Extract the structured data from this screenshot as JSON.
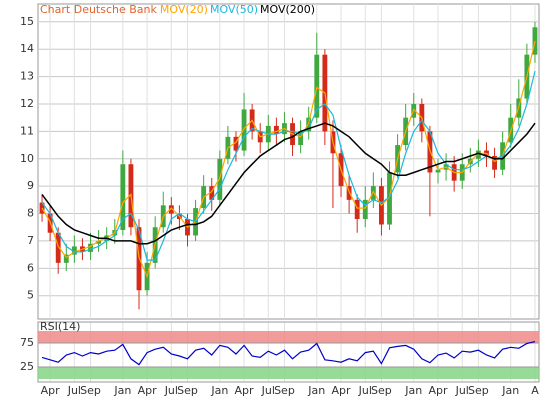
{
  "chart_data": [
    {
      "type": "candlestick",
      "title": "Chart Deutsche Bank",
      "title_color": "#e0642a",
      "categories": [
        null,
        "Apr",
        null,
        null,
        "Jul",
        null,
        "Sep",
        null,
        null,
        null,
        "Jan",
        null,
        null,
        "Apr",
        null,
        null,
        "Jul",
        null,
        "Sep",
        null,
        null,
        null,
        "Jan",
        null,
        null,
        "Apr",
        null,
        null,
        "Jul",
        null,
        "Sep",
        null,
        null,
        null,
        "Jan",
        null,
        null,
        "Apr",
        null,
        null,
        "Jul",
        null,
        "Sep",
        null,
        null,
        null,
        "Jan",
        null,
        null,
        "Apr",
        null,
        null,
        "Jul",
        null,
        "Sep",
        null,
        null,
        null,
        "Jan",
        null,
        null,
        "A"
      ],
      "open": [
        8.4,
        8.0,
        7.3,
        6.2,
        6.5,
        6.8,
        6.6,
        6.9,
        7.0,
        7.2,
        7.4,
        9.8,
        7.5,
        5.2,
        6.2,
        7.5,
        8.3,
        8.0,
        7.8,
        7.2,
        8.2,
        9.0,
        8.5,
        10.0,
        10.8,
        10.3,
        11.8,
        11.0,
        10.6,
        11.2,
        10.9,
        11.3,
        10.5,
        11.0,
        11.5,
        13.8,
        11.0,
        10.2,
        9.0,
        8.5,
        7.8,
        8.5,
        9.0,
        7.6,
        9.5,
        10.5,
        11.5,
        12.0,
        11.0,
        9.5,
        9.6,
        9.8,
        9.2,
        9.8,
        10.0,
        10.3,
        10.1,
        9.6,
        10.6,
        11.5,
        12.2,
        13.8
      ],
      "high": [
        8.7,
        8.3,
        7.5,
        6.9,
        7.2,
        7.1,
        7.3,
        7.4,
        7.5,
        7.8,
        10.3,
        10.0,
        7.8,
        6.6,
        7.9,
        8.8,
        8.6,
        8.3,
        8.0,
        8.5,
        9.4,
        9.3,
        10.3,
        11.2,
        11.0,
        12.4,
        12.0,
        11.3,
        11.6,
        11.5,
        11.7,
        11.5,
        11.4,
        11.9,
        14.6,
        14.0,
        11.4,
        10.5,
        9.4,
        8.7,
        9.0,
        9.5,
        9.3,
        9.9,
        10.9,
        12.0,
        12.4,
        12.2,
        11.2,
        10.0,
        10.2,
        10.1,
        10.2,
        10.4,
        10.7,
        10.6,
        10.4,
        11.0,
        12.0,
        12.9,
        14.2,
        15.0
      ],
      "low": [
        7.7,
        7.0,
        5.8,
        5.9,
        6.2,
        6.3,
        6.3,
        6.6,
        6.7,
        6.9,
        7.2,
        7.2,
        4.5,
        5.0,
        6.0,
        7.3,
        7.6,
        7.4,
        6.8,
        7.0,
        8.0,
        8.1,
        8.3,
        9.8,
        9.9,
        10.1,
        10.7,
        10.2,
        10.3,
        10.5,
        10.6,
        10.1,
        10.2,
        10.7,
        11.3,
        10.5,
        8.2,
        8.6,
        8.0,
        7.3,
        7.5,
        8.2,
        7.2,
        7.4,
        9.3,
        10.3,
        11.2,
        10.6,
        7.9,
        9.1,
        9.2,
        8.8,
        8.9,
        9.5,
        9.7,
        9.7,
        9.3,
        9.4,
        10.4,
        11.2,
        12.0,
        13.5
      ],
      "close": [
        8.0,
        7.3,
        6.2,
        6.5,
        6.8,
        6.6,
        6.9,
        7.0,
        7.2,
        7.4,
        9.8,
        7.5,
        5.2,
        6.2,
        7.5,
        8.3,
        8.0,
        7.8,
        7.2,
        8.2,
        9.0,
        8.5,
        10.0,
        10.8,
        10.3,
        11.8,
        11.0,
        10.6,
        11.2,
        10.9,
        11.3,
        10.5,
        11.0,
        11.5,
        13.8,
        11.0,
        10.2,
        9.0,
        8.5,
        7.8,
        8.5,
        9.0,
        7.6,
        9.5,
        10.5,
        11.5,
        12.0,
        11.0,
        9.5,
        9.6,
        9.8,
        9.2,
        9.8,
        10.0,
        10.3,
        10.1,
        9.6,
        10.6,
        11.5,
        12.2,
        13.8,
        14.8
      ],
      "up_color": "#3fa83f",
      "down_color": "#d42a1a",
      "series": [
        {
          "name": "MOV(20)",
          "color": "#ffa500",
          "values": [
            8.2,
            7.7,
            6.8,
            6.4,
            6.6,
            6.7,
            6.8,
            7.0,
            7.1,
            7.3,
            8.4,
            8.7,
            6.4,
            5.7,
            6.9,
            7.9,
            8.2,
            7.9,
            7.5,
            7.7,
            8.6,
            8.8,
            9.3,
            10.4,
            10.6,
            11.1,
            11.4,
            10.8,
            10.9,
            11.0,
            11.1,
            10.9,
            10.8,
            11.3,
            12.6,
            12.4,
            10.6,
            9.6,
            8.8,
            8.2,
            8.2,
            8.8,
            8.3,
            8.6,
            10.0,
            11.0,
            11.8,
            11.5,
            10.3,
            9.6,
            9.7,
            9.5,
            9.5,
            9.9,
            10.2,
            10.2,
            9.9,
            10.1,
            11.0,
            11.9,
            13.0,
            14.3
          ]
        },
        {
          "name": "MOV(50)",
          "color": "#1ab8e0",
          "values": [
            8.4,
            8.0,
            7.3,
            6.8,
            6.6,
            6.6,
            6.7,
            6.8,
            7.0,
            7.2,
            7.8,
            8.0,
            7.4,
            6.3,
            6.3,
            7.0,
            7.8,
            8.0,
            7.8,
            7.7,
            8.1,
            8.5,
            8.9,
            9.6,
            10.2,
            10.8,
            11.1,
            11.0,
            10.9,
            10.9,
            11.0,
            11.0,
            10.9,
            11.1,
            11.8,
            12.0,
            11.6,
            10.4,
            9.4,
            8.6,
            8.3,
            8.5,
            8.4,
            8.6,
            9.2,
            10.2,
            11.0,
            11.4,
            11.0,
            10.2,
            9.8,
            9.6,
            9.6,
            9.7,
            9.9,
            10.1,
            10.0,
            10.1,
            10.5,
            11.1,
            12.0,
            13.2
          ]
        },
        {
          "name": "MOV(200)",
          "color": "#000000",
          "values": [
            8.7,
            8.3,
            7.9,
            7.6,
            7.4,
            7.3,
            7.2,
            7.1,
            7.1,
            7.0,
            7.0,
            7.0,
            6.9,
            6.9,
            7.0,
            7.2,
            7.4,
            7.5,
            7.6,
            7.6,
            7.7,
            7.9,
            8.3,
            8.7,
            9.1,
            9.5,
            9.8,
            10.1,
            10.3,
            10.5,
            10.7,
            10.8,
            11.0,
            11.1,
            11.2,
            11.3,
            11.2,
            11.0,
            10.8,
            10.5,
            10.2,
            10.0,
            9.8,
            9.5,
            9.4,
            9.4,
            9.5,
            9.6,
            9.7,
            9.8,
            9.9,
            9.9,
            10.0,
            10.1,
            10.2,
            10.1,
            10.0,
            10.0,
            10.3,
            10.6,
            10.9,
            11.3
          ]
        }
      ],
      "ylim": [
        4.15,
        15.65
      ],
      "yticks": [
        5,
        6,
        7,
        8,
        9,
        10,
        11,
        12,
        13,
        14,
        15
      ],
      "grid": true
    },
    {
      "type": "line",
      "title": "RSI(14)",
      "series": [
        {
          "color": "#0000cc",
          "values": [
            45,
            40,
            35,
            50,
            55,
            48,
            55,
            52,
            58,
            60,
            72,
            42,
            30,
            55,
            62,
            66,
            52,
            48,
            42,
            60,
            64,
            50,
            70,
            66,
            52,
            70,
            48,
            45,
            58,
            50,
            60,
            42,
            56,
            60,
            74,
            40,
            38,
            35,
            42,
            38,
            55,
            58,
            32,
            65,
            68,
            70,
            62,
            42,
            34,
            50,
            54,
            44,
            58,
            56,
            60,
            50,
            44,
            62,
            66,
            64,
            74,
            78
          ]
        }
      ],
      "ylim": [
        0,
        100
      ],
      "yticks": [
        25,
        75
      ],
      "upper_band_color": "#f08a8a",
      "lower_band_color": "#86d486"
    }
  ]
}
